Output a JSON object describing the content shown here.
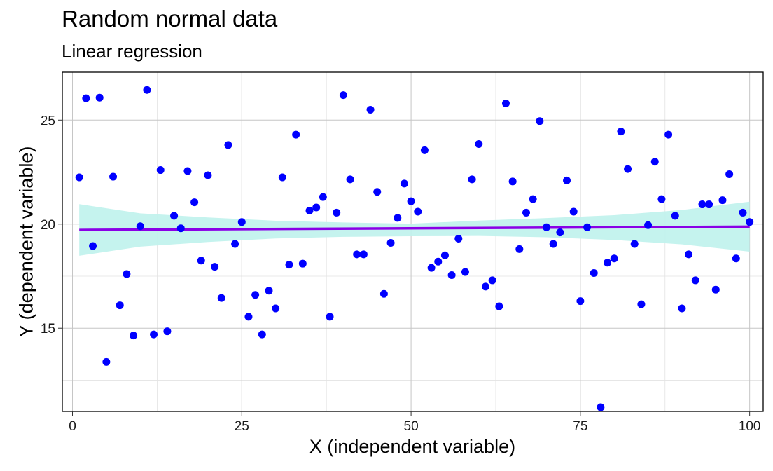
{
  "chart_data": {
    "type": "scatter",
    "title": "Random normal data",
    "subtitle": "Linear regression",
    "xlabel": "X (independent variable)",
    "ylabel": "Y (dependent variable)",
    "xlim": [
      -1.5,
      102
    ],
    "ylim": [
      11.0,
      27.3
    ],
    "xticks": [
      0,
      25,
      50,
      75,
      100
    ],
    "yticks": [
      15,
      20,
      25
    ],
    "grid": true,
    "point_color": "#0000ff",
    "line_color": "#8a00e6",
    "band_color": "#bff2ec",
    "x": [
      1,
      2,
      3,
      4,
      5,
      6,
      7,
      8,
      9,
      10,
      11,
      12,
      13,
      14,
      15,
      16,
      17,
      18,
      19,
      20,
      21,
      22,
      23,
      24,
      25,
      26,
      27,
      28,
      29,
      30,
      31,
      32,
      33,
      34,
      35,
      36,
      37,
      38,
      39,
      40,
      41,
      42,
      43,
      44,
      45,
      46,
      47,
      48,
      49,
      50,
      51,
      52,
      53,
      54,
      55,
      56,
      57,
      58,
      59,
      60,
      61,
      62,
      63,
      64,
      65,
      66,
      67,
      68,
      69,
      70,
      71,
      72,
      73,
      74,
      75,
      76,
      77,
      78,
      79,
      80,
      81,
      82,
      83,
      84,
      85,
      86,
      87,
      88,
      89,
      90,
      91,
      92,
      93,
      94,
      95,
      96,
      97,
      98,
      99,
      100
    ],
    "y": [
      22.25,
      26.05,
      18.95,
      26.08,
      13.38,
      22.28,
      16.1,
      17.6,
      14.65,
      19.9,
      26.45,
      14.7,
      22.6,
      14.85,
      20.4,
      19.8,
      22.55,
      21.05,
      18.25,
      22.35,
      17.95,
      16.45,
      23.8,
      19.05,
      20.1,
      15.55,
      16.6,
      14.7,
      16.8,
      15.95,
      22.25,
      18.05,
      24.3,
      18.1,
      20.65,
      20.8,
      21.3,
      15.55,
      20.55,
      26.2,
      22.15,
      18.55,
      18.55,
      25.5,
      21.55,
      16.65,
      19.1,
      20.3,
      21.95,
      21.1,
      20.6,
      23.55,
      17.9,
      18.2,
      18.5,
      17.55,
      19.3,
      17.7,
      22.15,
      23.85,
      17.0,
      17.3,
      16.05,
      25.8,
      22.05,
      18.8,
      20.55,
      21.2,
      24.95,
      19.85,
      19.05,
      19.6,
      22.1,
      20.6,
      16.3,
      19.85,
      17.65,
      11.2,
      18.15,
      18.35,
      24.45,
      22.65,
      19.05,
      16.15,
      19.95,
      23.0,
      21.2,
      24.3,
      20.4,
      15.95,
      18.55,
      17.3,
      20.95,
      20.95,
      16.85,
      21.15,
      22.4,
      18.35,
      20.55,
      20.1
    ],
    "regression": {
      "x": [
        1,
        100
      ],
      "y": [
        19.72,
        19.88
      ]
    },
    "confidence_band": {
      "x": [
        1,
        10,
        20,
        30,
        40,
        50,
        60,
        70,
        80,
        90,
        100
      ],
      "lower": [
        18.48,
        18.92,
        19.14,
        19.31,
        19.39,
        19.42,
        19.43,
        19.37,
        19.24,
        19.03,
        18.68
      ],
      "upper": [
        20.96,
        20.52,
        20.32,
        20.16,
        20.08,
        20.02,
        20.17,
        20.29,
        20.43,
        20.68,
        21.08
      ]
    }
  }
}
